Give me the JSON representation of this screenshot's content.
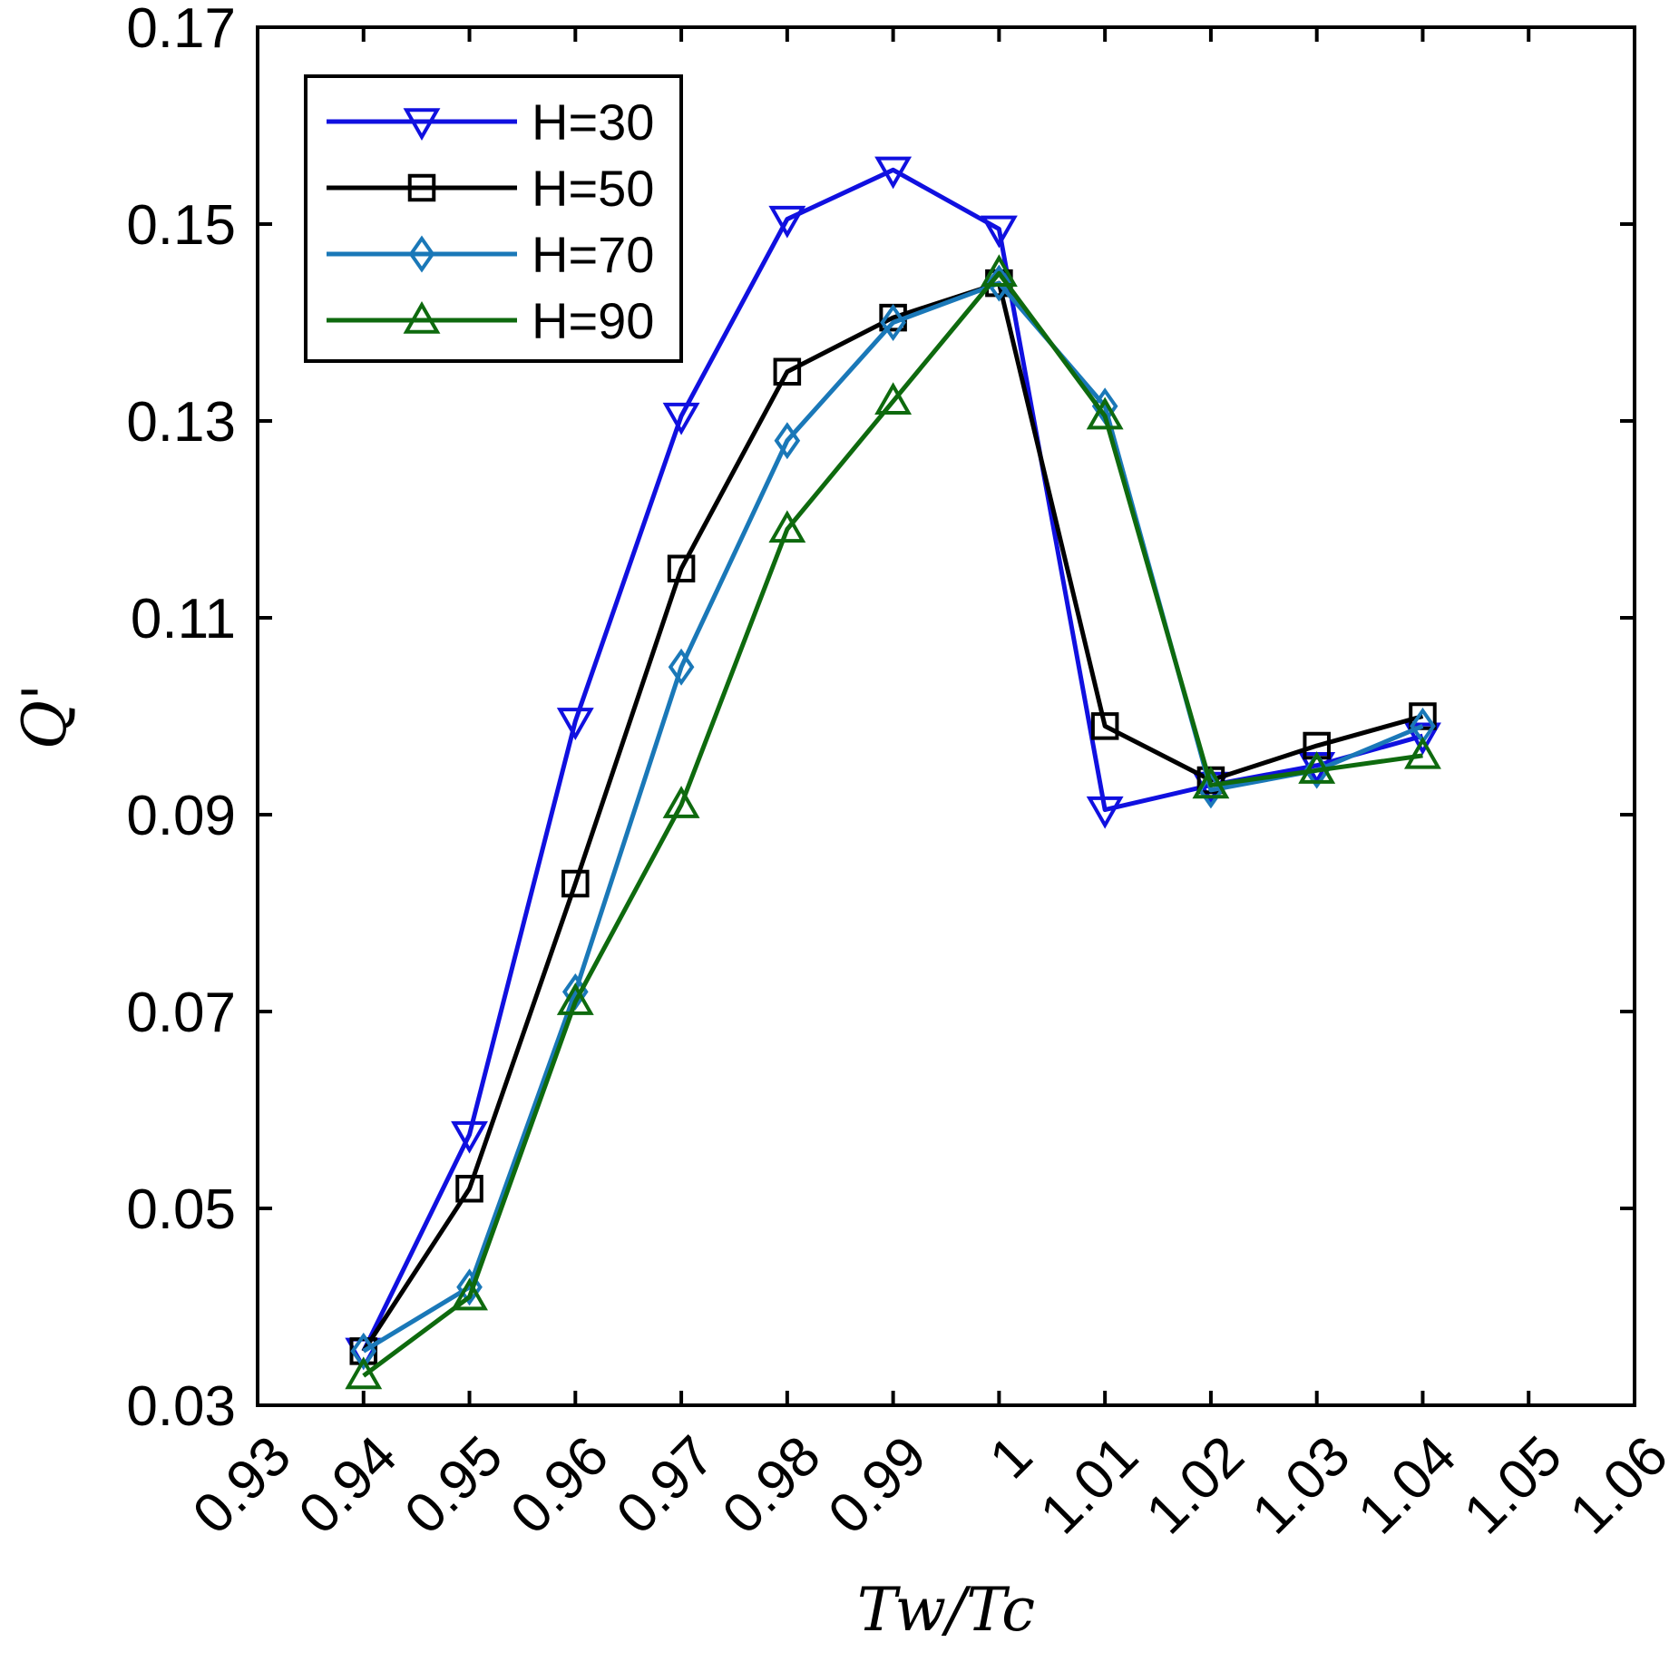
{
  "chart_data": {
    "type": "line",
    "title": "",
    "xlabel": "Tw/Tc",
    "ylabel": "Q'",
    "xlim": [
      0.93,
      1.06
    ],
    "ylim": [
      0.03,
      0.17
    ],
    "xticks": [
      0.93,
      0.94,
      0.95,
      0.96,
      0.97,
      0.98,
      0.99,
      1.0,
      1.01,
      1.02,
      1.03,
      1.04,
      1.05,
      1.06
    ],
    "xtick_labels": [
      "0.93",
      "0.94",
      "0.95",
      "0.96",
      "0.97",
      "0.98",
      "0.99",
      "1",
      "1.01",
      "1.02",
      "1.03",
      "1.04",
      "1.05",
      "1.06"
    ],
    "yticks": [
      0.03,
      0.05,
      0.07,
      0.09,
      0.11,
      0.13,
      0.15,
      0.17
    ],
    "ytick_labels": [
      "0.03",
      "0.05",
      "0.07",
      "0.09",
      "0.11",
      "0.13",
      "0.15",
      "0.17"
    ],
    "grid": false,
    "legend_position": "top-left",
    "x": [
      0.94,
      0.95,
      0.96,
      0.97,
      0.98,
      0.99,
      1.0,
      1.01,
      1.02,
      1.03,
      1.04
    ],
    "series": [
      {
        "name": "H=30",
        "color": "#1010e0",
        "marker": "triangle-down",
        "values": [
          0.0355,
          0.0575,
          0.0995,
          0.1305,
          0.1505,
          0.1555,
          0.1495,
          0.0905,
          0.093,
          0.095,
          0.098
        ]
      },
      {
        "name": "H=50",
        "color": "#000000",
        "marker": "square",
        "values": [
          0.0355,
          0.052,
          0.083,
          0.115,
          0.135,
          0.1405,
          0.144,
          0.099,
          0.0935,
          0.097,
          0.1
        ]
      },
      {
        "name": "H=70",
        "color": "#1a78b8",
        "marker": "diamond",
        "values": [
          0.0355,
          0.042,
          0.072,
          0.105,
          0.128,
          0.14,
          0.144,
          0.1315,
          0.0925,
          0.0945,
          0.099
        ]
      },
      {
        "name": "H=90",
        "color": "#0e6a0e",
        "marker": "triangle-up",
        "values": [
          0.033,
          0.041,
          0.071,
          0.091,
          0.119,
          0.132,
          0.145,
          0.1305,
          0.093,
          0.0945,
          0.096
        ]
      }
    ]
  }
}
